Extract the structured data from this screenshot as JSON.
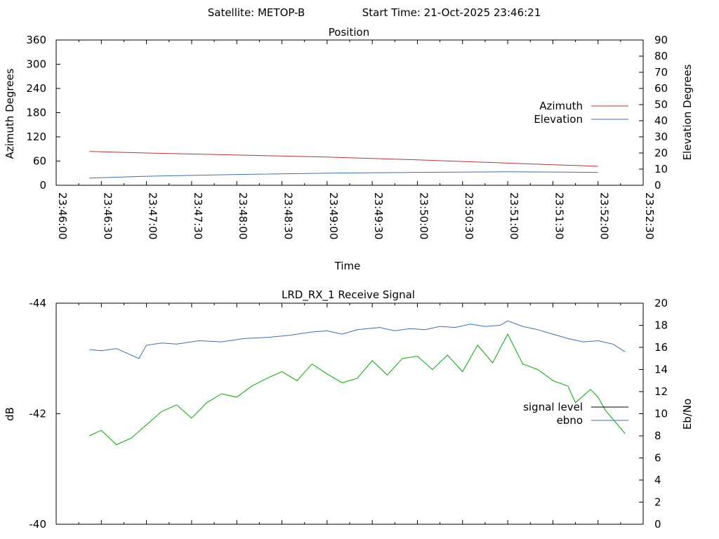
{
  "header": {
    "satellite": "Satellite: METOP-B",
    "start_time": "Start Time: 21-Oct-2025 23:46:21"
  },
  "chart_data": [
    {
      "type": "line",
      "title": "Position",
      "xlabel": "Time",
      "ylabel": "Azimuth Degrees",
      "y2label": "Elevation Degrees",
      "xlim": [
        0,
        390
      ],
      "x_tick_labels": [
        "23:46:00",
        "23:46:30",
        "23:47:00",
        "23:47:30",
        "23:48:00",
        "23:48:30",
        "23:49:00",
        "23:49:30",
        "23:50:00",
        "23:50:30",
        "23:51:00",
        "23:51:30",
        "23:52:00",
        "23:52:30"
      ],
      "ylim": [
        0,
        360
      ],
      "y_ticks": [
        "0",
        "60",
        "120",
        "180",
        "240",
        "300",
        "360"
      ],
      "y2lim": [
        0,
        90
      ],
      "y2_ticks": [
        "0",
        "10",
        "20",
        "30",
        "40",
        "50",
        "60",
        "70",
        "80",
        "90"
      ],
      "legend_position": "right",
      "colors": {
        "azimuth": "#b03838",
        "elevation": "#3a6fb0"
      },
      "series": [
        {
          "name": "Azimuth",
          "axis": "left",
          "points": [
            [
              22,
              84
            ],
            [
              60,
              80
            ],
            [
              120,
              75
            ],
            [
              180,
              70
            ],
            [
              240,
              63
            ],
            [
              300,
              55
            ],
            [
              360,
              47
            ],
            [
              330,
              51
            ],
            [
              345,
              49
            ]
          ]
        },
        {
          "name": "Elevation",
          "axis": "right",
          "points": [
            [
              22,
              4.5
            ],
            [
              60,
              5.6
            ],
            [
              120,
              6.7
            ],
            [
              180,
              7.5
            ],
            [
              240,
              8.0
            ],
            [
              300,
              8.4
            ],
            [
              330,
              8.2
            ],
            [
              360,
              8.0
            ]
          ]
        }
      ]
    },
    {
      "type": "line",
      "title": "LRD_RX_1 Receive Signal",
      "ylabel": "dB",
      "y2label": "Eb/No",
      "xlim": [
        0,
        390
      ],
      "ylim": [
        -44,
        -40
      ],
      "y_ticks": [
        "-40",
        "-42",
        "-44"
      ],
      "y2lim": [
        0,
        20
      ],
      "y2_ticks": [
        "0",
        "2",
        "4",
        "6",
        "8",
        "10",
        "12",
        "14",
        "16",
        "18",
        "20"
      ],
      "legend_position": "right",
      "colors": {
        "signal_level": "#000000",
        "ebno": "#3a6fb0",
        "green": "#00aa00"
      },
      "legend": [
        "signal level",
        "ebno"
      ],
      "series": [
        {
          "name": "ebno",
          "axis": "right",
          "points": [
            [
              22,
              15.8
            ],
            [
              30,
              15.7
            ],
            [
              40,
              15.9
            ],
            [
              55,
              15.0
            ],
            [
              60,
              16.2
            ],
            [
              70,
              16.4
            ],
            [
              80,
              16.3
            ],
            [
              95,
              16.6
            ],
            [
              110,
              16.5
            ],
            [
              125,
              16.8
            ],
            [
              140,
              16.9
            ],
            [
              155,
              17.1
            ],
            [
              170,
              17.4
            ],
            [
              180,
              17.5
            ],
            [
              190,
              17.2
            ],
            [
              200,
              17.6
            ],
            [
              215,
              17.8
            ],
            [
              225,
              17.5
            ],
            [
              235,
              17.7
            ],
            [
              245,
              17.6
            ],
            [
              255,
              17.9
            ],
            [
              265,
              17.8
            ],
            [
              275,
              18.1
            ],
            [
              285,
              17.9
            ],
            [
              295,
              18.0
            ],
            [
              300,
              18.4
            ],
            [
              310,
              17.9
            ],
            [
              320,
              17.6
            ],
            [
              330,
              17.2
            ],
            [
              340,
              16.8
            ],
            [
              350,
              16.5
            ],
            [
              360,
              16.6
            ],
            [
              370,
              16.3
            ],
            [
              378,
              15.6
            ]
          ]
        },
        {
          "name": "",
          "axis": "right",
          "points": [
            [
              22,
              8.0
            ],
            [
              30,
              8.5
            ],
            [
              40,
              7.2
            ],
            [
              50,
              7.8
            ],
            [
              60,
              9.0
            ],
            [
              70,
              10.2
            ],
            [
              80,
              10.8
            ],
            [
              90,
              9.6
            ],
            [
              100,
              11.0
            ],
            [
              110,
              11.8
            ],
            [
              120,
              11.5
            ],
            [
              130,
              12.5
            ],
            [
              140,
              13.2
            ],
            [
              150,
              13.8
            ],
            [
              160,
              13.0
            ],
            [
              170,
              14.5
            ],
            [
              180,
              13.6
            ],
            [
              190,
              12.8
            ],
            [
              200,
              13.2
            ],
            [
              210,
              14.8
            ],
            [
              220,
              13.5
            ],
            [
              230,
              15.0
            ],
            [
              240,
              15.2
            ],
            [
              250,
              14.0
            ],
            [
              260,
              15.3
            ],
            [
              270,
              13.8
            ],
            [
              280,
              16.2
            ],
            [
              290,
              14.6
            ],
            [
              300,
              17.2
            ],
            [
              310,
              14.5
            ],
            [
              320,
              14.0
            ],
            [
              330,
              13.0
            ],
            [
              340,
              12.5
            ],
            [
              345,
              11.0
            ],
            [
              355,
              12.2
            ],
            [
              360,
              11.5
            ],
            [
              365,
              10.3
            ],
            [
              370,
              9.5
            ],
            [
              378,
              8.2
            ]
          ]
        }
      ]
    }
  ]
}
